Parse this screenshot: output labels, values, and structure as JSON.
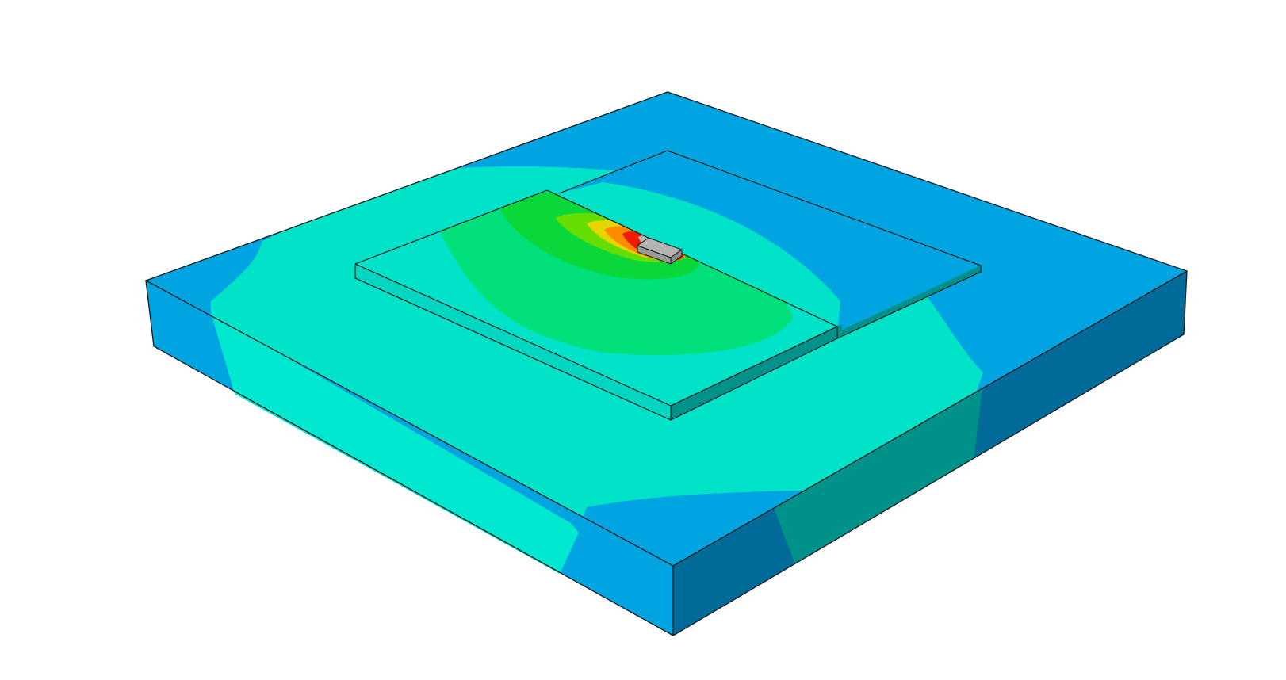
{
  "scene": {
    "description_visible_text": "",
    "colors": {
      "background": "#ffffff",
      "edge": "#1a1a1a",
      "contour_blue": "#00a4e0",
      "contour_cyan": "#00e3c8",
      "contour_cyan_light": "#00ecd8",
      "contour_green_light": "#00e07a",
      "contour_green": "#0ad83a",
      "contour_lime": "#66dd00",
      "contour_yellow": "#e8d400",
      "contour_orange": "#ff8c00",
      "contour_red": "#ee1c00",
      "peak_gray": "#b4b4b4",
      "side_dark_blue": "#006b99",
      "side_dark_teal": "#00918a",
      "strip_side": "#00a89c"
    }
  }
}
